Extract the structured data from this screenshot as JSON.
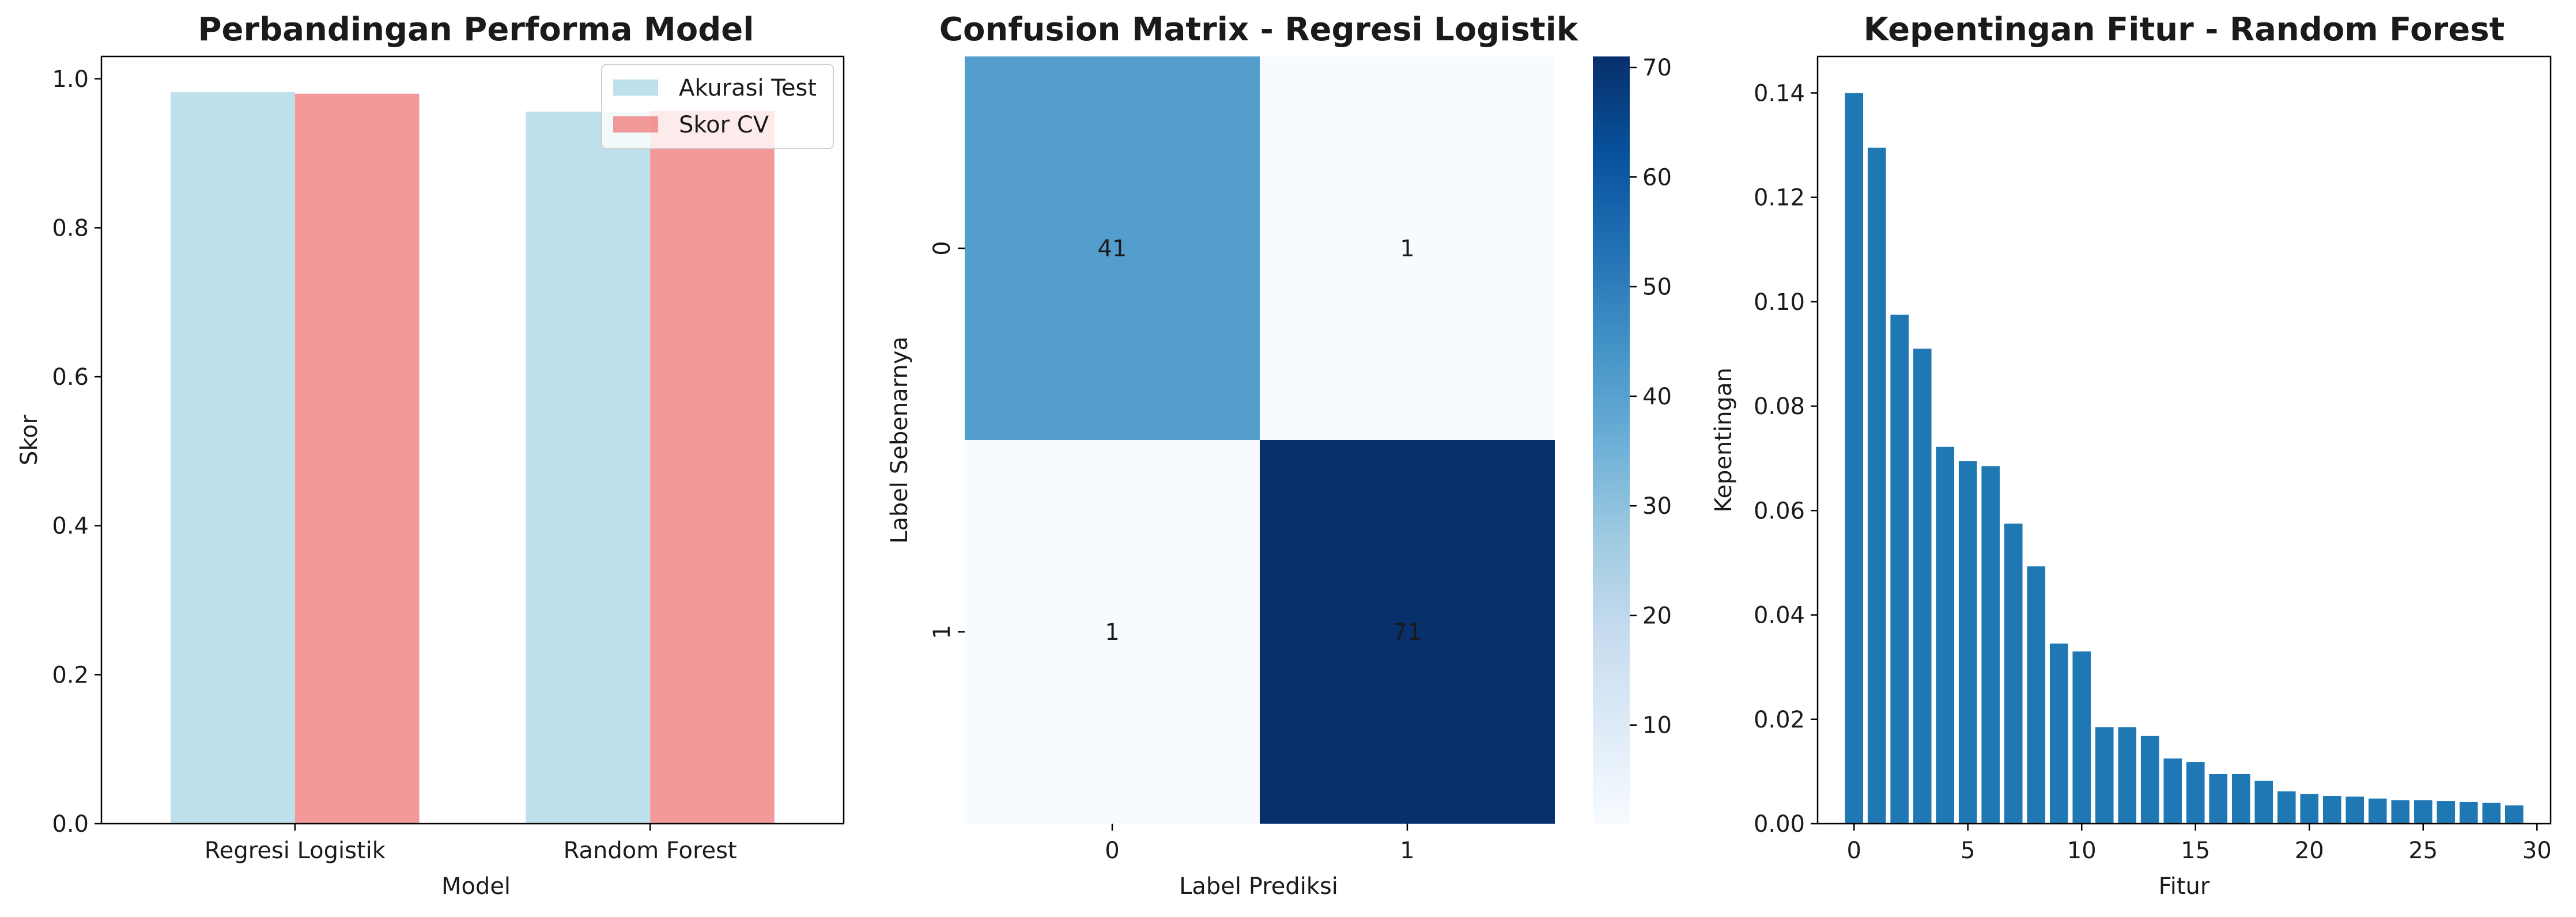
{
  "chart_data": [
    {
      "type": "bar",
      "title": "Perbandingan Performa Model",
      "xlabel": "Model",
      "ylabel": "Skor",
      "categories": [
        "Regresi Logistik",
        "Random Forest"
      ],
      "series": [
        {
          "name": "Akurasi Test",
          "values": [
            0.982,
            0.956
          ],
          "color": "#add8e6"
        },
        {
          "name": "Skor CV",
          "values": [
            0.98,
            0.957
          ],
          "color": "#f08080"
        }
      ],
      "ylim": [
        0,
        1.03
      ],
      "yticks": [
        "0.0",
        "0.2",
        "0.4",
        "0.6",
        "0.8",
        "1.0"
      ],
      "legend": "top-right",
      "grid": false
    },
    {
      "type": "heatmap",
      "title": "Confusion Matrix - Regresi Logistik",
      "xlabel": "Label Prediksi",
      "ylabel": "Label Sebenarnya",
      "x_categories": [
        "0",
        "1"
      ],
      "y_categories": [
        "0",
        "1"
      ],
      "matrix": [
        [
          41,
          1
        ],
        [
          1,
          71
        ]
      ],
      "colormap": "Blues",
      "colorbar_range": [
        1,
        71
      ],
      "colorbar_ticks": [
        "10",
        "20",
        "30",
        "40",
        "50",
        "60",
        "70"
      ]
    },
    {
      "type": "bar",
      "title": "Kepentingan Fitur - Random Forest",
      "xlabel": "Fitur",
      "ylabel": "Kepentingan",
      "x": [
        0,
        1,
        2,
        3,
        4,
        5,
        6,
        7,
        8,
        9,
        10,
        11,
        12,
        13,
        14,
        15,
        16,
        17,
        18,
        19,
        20,
        21,
        22,
        23,
        24,
        25,
        26,
        27,
        28,
        29
      ],
      "values": [
        0.14,
        0.1295,
        0.0975,
        0.091,
        0.0722,
        0.0695,
        0.0685,
        0.0575,
        0.0493,
        0.0345,
        0.033,
        0.0185,
        0.0185,
        0.0168,
        0.0125,
        0.0118,
        0.0095,
        0.0095,
        0.0082,
        0.0062,
        0.0057,
        0.0053,
        0.0052,
        0.0048,
        0.0045,
        0.0045,
        0.0043,
        0.0042,
        0.004,
        0.0035
      ],
      "color": "#1f77b4",
      "ylim": [
        0,
        0.147
      ],
      "yticks": [
        "0.00",
        "0.02",
        "0.04",
        "0.06",
        "0.08",
        "0.10",
        "0.12",
        "0.14"
      ],
      "xlim": [
        -1.6,
        30.6
      ],
      "xticks": [
        "0",
        "5",
        "10",
        "15",
        "20",
        "25",
        "30"
      ],
      "grid": false
    }
  ]
}
